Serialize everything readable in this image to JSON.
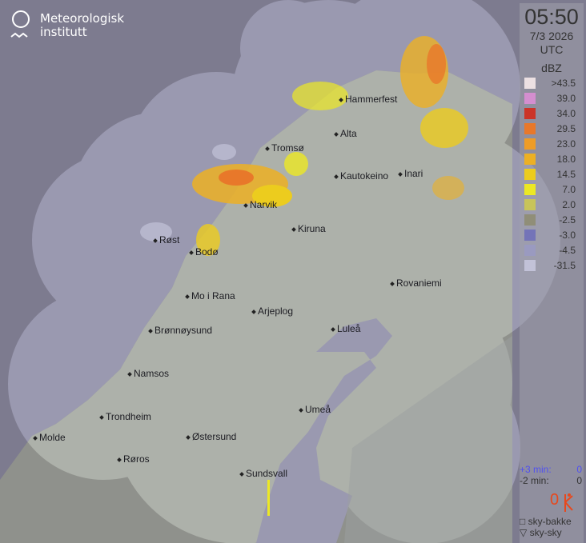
{
  "logo": {
    "line1": "Meteorologisk",
    "line2": "institutt"
  },
  "header": {
    "time": "05:50",
    "date": "7/3 2026",
    "timezone": "UTC"
  },
  "legend": {
    "unit": "dBZ",
    "items": [
      {
        "label": ">43.5",
        "color": "#ece0e2"
      },
      {
        "label": "39.0",
        "color": "#d48ecf"
      },
      {
        "label": "34.0",
        "color": "#cc3428"
      },
      {
        "label": "29.5",
        "color": "#e8782a"
      },
      {
        "label": "23.0",
        "color": "#ee9c26"
      },
      {
        "label": "18.0",
        "color": "#ecb024"
      },
      {
        "label": "14.5",
        "color": "#eccc1e"
      },
      {
        "label": "7.0",
        "color": "#ece824"
      },
      {
        "label": "2.0",
        "color": "#c8c45a"
      },
      {
        "label": "-2.5",
        "color": "#908e78"
      },
      {
        "label": "-3.0",
        "color": "#7474b8"
      },
      {
        "label": "-4.5",
        "color": "#9a9ac0"
      },
      {
        "label": "-31.5",
        "color": "#c2c2d8"
      }
    ]
  },
  "timing": {
    "plus_label": "+3 min:",
    "plus_value": "0",
    "minus_label": "-2 min:",
    "minus_value": "0"
  },
  "lightning": {
    "count": "0",
    "icon": "lightning-icon",
    "color": "#e8481c"
  },
  "lightning_types": {
    "ground": "sky-bakke",
    "cloud": "sky-sky"
  },
  "cities": [
    {
      "name": "Hammerfest"
    },
    {
      "name": "Alta"
    },
    {
      "name": "Tromsø"
    },
    {
      "name": "Kautokeino"
    },
    {
      "name": "Inari"
    },
    {
      "name": "Narvik"
    },
    {
      "name": "Kiruna"
    },
    {
      "name": "Røst"
    },
    {
      "name": "Bodø"
    },
    {
      "name": "Rovaniemi"
    },
    {
      "name": "Mo i Rana"
    },
    {
      "name": "Arjeplog"
    },
    {
      "name": "Brønnøysund"
    },
    {
      "name": "Luleå"
    },
    {
      "name": "Namsos"
    },
    {
      "name": "Umeå"
    },
    {
      "name": "Trondheim"
    },
    {
      "name": "Molde"
    },
    {
      "name": "Østersund"
    },
    {
      "name": "Røros"
    },
    {
      "name": "Sundsvall"
    }
  ]
}
